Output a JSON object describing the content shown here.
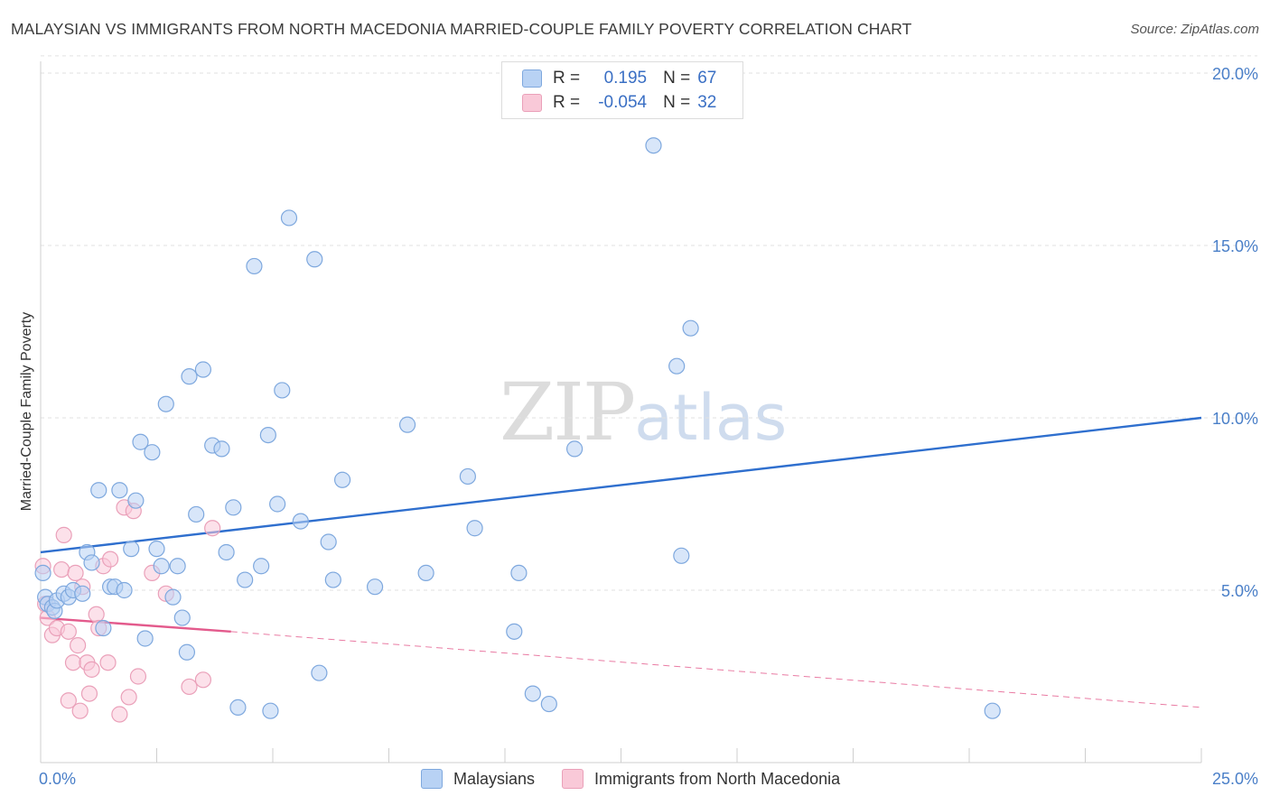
{
  "title": "MALAYSIAN VS IMMIGRANTS FROM NORTH MACEDONIA MARRIED-COUPLE FAMILY POVERTY CORRELATION CHART",
  "source": "Source: ZipAtlas.com",
  "watermark": {
    "zip": "ZIP",
    "atlas": "atlas"
  },
  "legend": {
    "rows": [
      {
        "r_label": "R =",
        "r_value": "0.195",
        "n_label": "N =",
        "n_value": "67"
      },
      {
        "r_label": "R =",
        "r_value": "-0.054",
        "n_label": "N =",
        "n_value": "32"
      }
    ]
  },
  "chart_data": {
    "type": "scatter",
    "title": "MALAYSIAN VS IMMIGRANTS FROM NORTH MACEDONIA MARRIED-COUPLE FAMILY POVERTY CORRELATION CHART",
    "xlabel": "",
    "ylabel": "Married-Couple Family Poverty",
    "xlim": [
      0,
      25
    ],
    "ylim": [
      0,
      20.5
    ],
    "x_tick_labels": [
      "0.0%",
      "25.0%"
    ],
    "y_ticks": [
      5,
      10,
      15,
      20
    ],
    "y_tick_labels": [
      "5.0%",
      "10.0%",
      "15.0%",
      "20.0%"
    ],
    "legend_position": "top-center",
    "colors": {
      "malaysians_fill": "#b8d2f4",
      "malaysians_stroke": "#7ea8de",
      "malaysians_line": "#2f6fce",
      "macedonia_fill": "#f9c9d8",
      "macedonia_stroke": "#eaa0b9",
      "macedonia_line": "#e35a8c"
    },
    "series": [
      {
        "name": "Malaysians",
        "r": 0.195,
        "n": 67,
        "trend": {
          "x": [
            0,
            25
          ],
          "y": [
            6.1,
            10.0
          ],
          "style": "solid"
        },
        "points": [
          [
            0.05,
            5.5
          ],
          [
            0.1,
            4.8
          ],
          [
            0.15,
            4.6
          ],
          [
            0.25,
            4.5
          ],
          [
            0.3,
            4.4
          ],
          [
            0.35,
            4.7
          ],
          [
            0.5,
            4.9
          ],
          [
            0.6,
            4.8
          ],
          [
            0.7,
            5.0
          ],
          [
            0.9,
            4.9
          ],
          [
            1.0,
            6.1
          ],
          [
            1.1,
            5.8
          ],
          [
            1.25,
            7.9
          ],
          [
            1.35,
            3.9
          ],
          [
            1.5,
            5.1
          ],
          [
            1.6,
            5.1
          ],
          [
            1.7,
            7.9
          ],
          [
            1.8,
            5.0
          ],
          [
            1.95,
            6.2
          ],
          [
            2.05,
            7.6
          ],
          [
            2.15,
            9.3
          ],
          [
            2.25,
            3.6
          ],
          [
            2.4,
            9.0
          ],
          [
            2.5,
            6.2
          ],
          [
            2.6,
            5.7
          ],
          [
            2.7,
            10.4
          ],
          [
            2.85,
            4.8
          ],
          [
            2.95,
            5.7
          ],
          [
            3.05,
            4.2
          ],
          [
            3.15,
            3.2
          ],
          [
            3.2,
            11.2
          ],
          [
            3.35,
            7.2
          ],
          [
            3.5,
            11.4
          ],
          [
            3.7,
            9.2
          ],
          [
            3.9,
            9.1
          ],
          [
            4.0,
            6.1
          ],
          [
            4.15,
            7.4
          ],
          [
            4.25,
            1.6
          ],
          [
            4.4,
            5.3
          ],
          [
            4.6,
            14.4
          ],
          [
            4.75,
            5.7
          ],
          [
            4.9,
            9.5
          ],
          [
            4.95,
            1.5
          ],
          [
            5.1,
            7.5
          ],
          [
            5.2,
            10.8
          ],
          [
            5.35,
            15.8
          ],
          [
            5.6,
            7.0
          ],
          [
            5.9,
            14.6
          ],
          [
            6.0,
            2.6
          ],
          [
            6.2,
            6.4
          ],
          [
            6.3,
            5.3
          ],
          [
            6.5,
            8.2
          ],
          [
            7.2,
            5.1
          ],
          [
            7.9,
            9.8
          ],
          [
            8.3,
            5.5
          ],
          [
            9.2,
            8.3
          ],
          [
            9.35,
            6.8
          ],
          [
            10.2,
            3.8
          ],
          [
            10.3,
            5.5
          ],
          [
            10.6,
            2.0
          ],
          [
            10.95,
            1.7
          ],
          [
            11.5,
            9.1
          ],
          [
            13.2,
            17.9
          ],
          [
            13.7,
            11.5
          ],
          [
            13.8,
            6.0
          ],
          [
            14.0,
            12.6
          ],
          [
            20.5,
            1.5
          ]
        ]
      },
      {
        "name": "Immigrants from North Macedonia",
        "r": -0.054,
        "n": 32,
        "trend": {
          "x": [
            0,
            4.1
          ],
          "y": [
            4.2,
            3.8
          ],
          "style": "solid",
          "extension": {
            "x": [
              4.1,
              25
            ],
            "y": [
              3.8,
              1.6
            ],
            "style": "dashed"
          }
        },
        "points": [
          [
            0.05,
            5.7
          ],
          [
            0.1,
            4.6
          ],
          [
            0.15,
            4.2
          ],
          [
            0.25,
            3.7
          ],
          [
            0.35,
            3.9
          ],
          [
            0.45,
            5.6
          ],
          [
            0.5,
            6.6
          ],
          [
            0.6,
            1.8
          ],
          [
            0.6,
            3.8
          ],
          [
            0.7,
            2.9
          ],
          [
            0.75,
            5.5
          ],
          [
            0.8,
            3.4
          ],
          [
            0.85,
            1.5
          ],
          [
            0.9,
            5.1
          ],
          [
            1.0,
            2.9
          ],
          [
            1.05,
            2.0
          ],
          [
            1.1,
            2.7
          ],
          [
            1.2,
            4.3
          ],
          [
            1.25,
            3.9
          ],
          [
            1.35,
            5.7
          ],
          [
            1.45,
            2.9
          ],
          [
            1.5,
            5.9
          ],
          [
            1.7,
            1.4
          ],
          [
            1.8,
            7.4
          ],
          [
            1.9,
            1.9
          ],
          [
            2.0,
            7.3
          ],
          [
            2.1,
            2.5
          ],
          [
            2.4,
            5.5
          ],
          [
            2.7,
            4.9
          ],
          [
            3.2,
            2.2
          ],
          [
            3.5,
            2.4
          ],
          [
            3.7,
            6.8
          ]
        ]
      }
    ]
  }
}
